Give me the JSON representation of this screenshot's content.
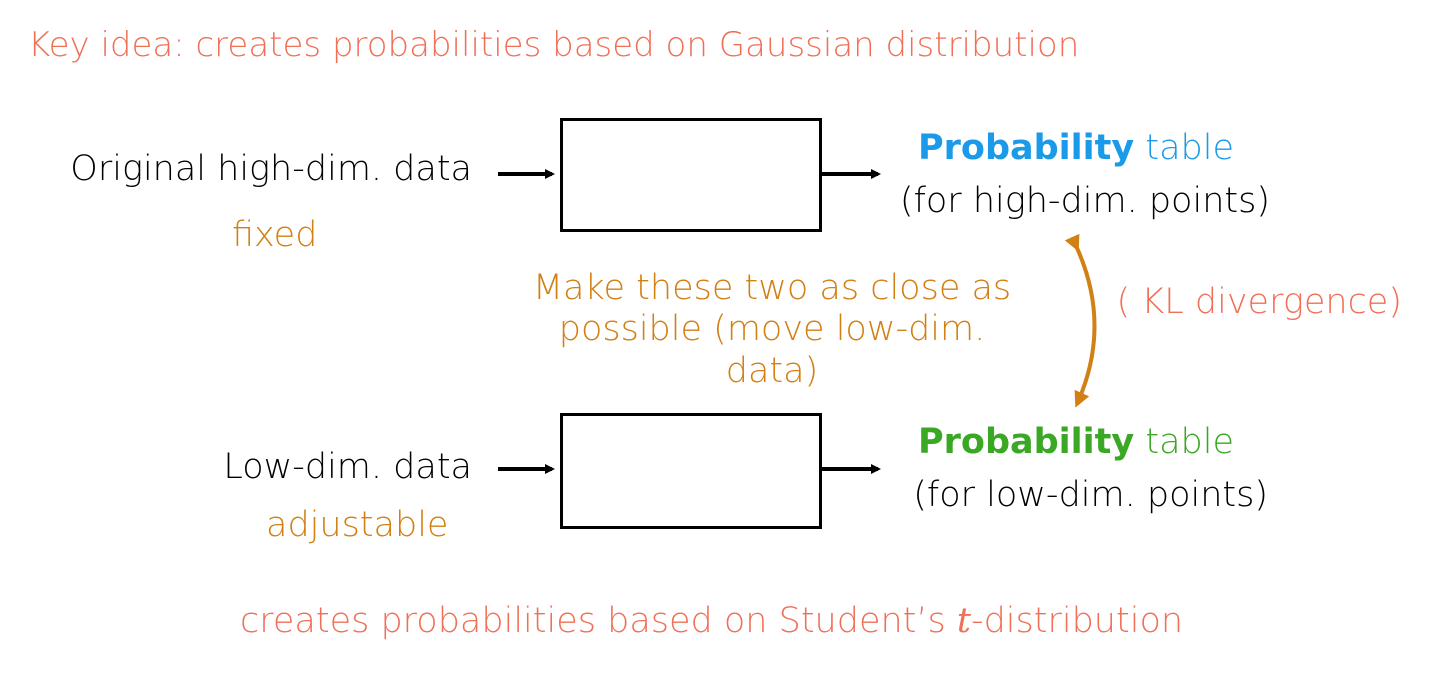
{
  "header": {
    "key_idea": "Key idea: creates probabilities based on Gaussian distribution"
  },
  "inputs": {
    "high_dim": "Original high-dim. data",
    "high_dim_tag": "fixed",
    "low_dim": "Low-dim. data",
    "low_dim_tag": "adjustable"
  },
  "outputs": {
    "high_table_bold": "Probability",
    "high_table_rest": " table",
    "high_table_sub": "(for high-dim. points)",
    "low_table_bold": "Probability",
    "low_table_rest": " table",
    "low_table_sub": "(for low-dim. points)"
  },
  "middle": {
    "close_line1": "Make these two as close as",
    "close_line2": "possible (move low-dim. data)",
    "kl": "( KL divergence)"
  },
  "footer": {
    "note_prefix": "creates probabilities based on Student’s ",
    "note_italic": "t",
    "note_suffix": "-distribution"
  },
  "colors": {
    "salmon": "#f07057",
    "orange": "#d27f13",
    "blue": "#1a9ae8",
    "green": "#3aa824"
  }
}
